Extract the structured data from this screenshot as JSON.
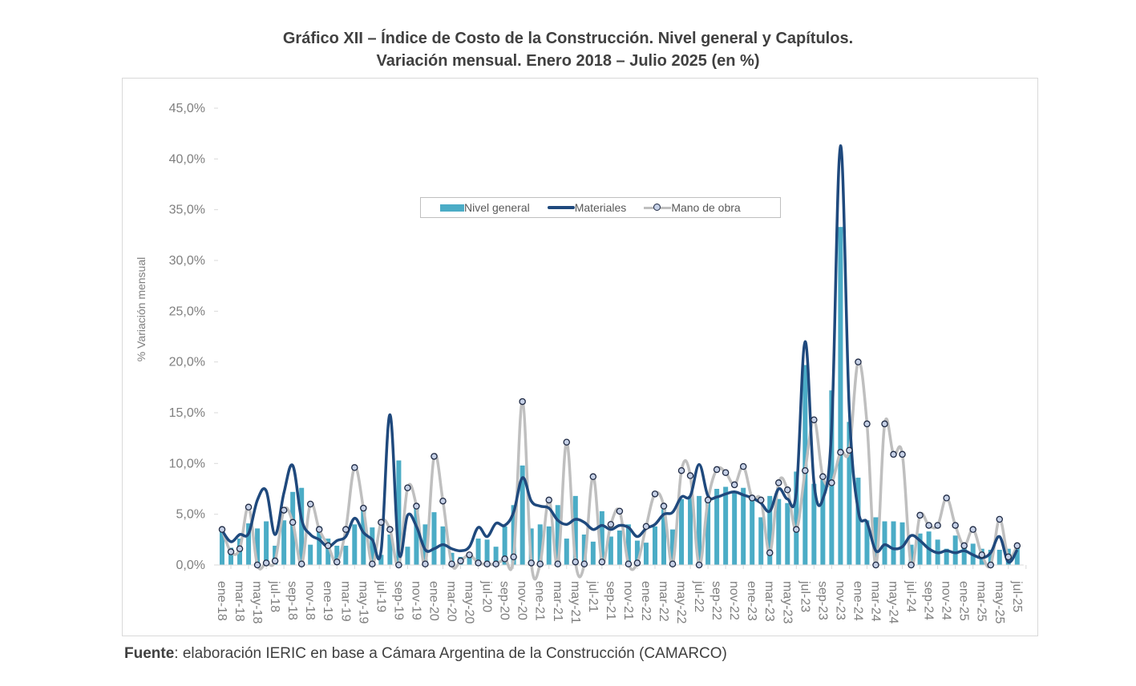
{
  "title_line1": "Gráfico XII – Índice de Costo de la Construcción. Nivel general y Capítulos.",
  "title_line2": "Variación mensual. Enero 2018 – Julio 2025 (en %)",
  "source_label": "Fuente",
  "source_text": ": elaboración IERIC en base a Cámara Argentina de la Construcción (CAMARCO)",
  "legend": {
    "nivel_general": "Nivel general",
    "materiales": "Materiales",
    "mano_de_obra": "Mano de obra"
  },
  "colors": {
    "nivel_general": "#4bacc6",
    "materiales": "#1f497d",
    "mano_de_obra": "#bfbfbf",
    "marker_fill": "#c5d0e6",
    "marker_edge": "#1f2a44"
  },
  "chart_data": {
    "type": "bar+line",
    "title": "Gráfico XII – Índice de Costo de la Construcción. Nivel general y Capítulos. Variación mensual. Enero 2018 – Julio 2025 (en %)",
    "xlabel": "",
    "ylabel": "% Variación mensual",
    "ylim": [
      0,
      45
    ],
    "yticks": [
      "0,0%",
      "5,0%",
      "10,0%",
      "15,0%",
      "20,0%",
      "25,0%",
      "30,0%",
      "35,0%",
      "40,0%",
      "45,0%"
    ],
    "ytick_values": [
      0,
      5,
      10,
      15,
      20,
      25,
      30,
      35,
      40,
      45
    ],
    "grid": false,
    "legend_position": "top-center",
    "categories": [
      "ene-18",
      "feb-18",
      "mar-18",
      "abr-18",
      "may-18",
      "jun-18",
      "jul-18",
      "ago-18",
      "sep-18",
      "oct-18",
      "nov-18",
      "dic-18",
      "ene-19",
      "feb-19",
      "mar-19",
      "abr-19",
      "may-19",
      "jun-19",
      "jul-19",
      "ago-19",
      "sep-19",
      "oct-19",
      "nov-19",
      "dic-19",
      "ene-20",
      "feb-20",
      "mar-20",
      "abr-20",
      "may-20",
      "jun-20",
      "jul-20",
      "ago-20",
      "sep-20",
      "oct-20",
      "nov-20",
      "dic-20",
      "ene-21",
      "feb-21",
      "mar-21",
      "abr-21",
      "may-21",
      "jun-21",
      "jul-21",
      "ago-21",
      "sep-21",
      "oct-21",
      "nov-21",
      "dic-21",
      "ene-22",
      "feb-22",
      "mar-22",
      "abr-22",
      "may-22",
      "jun-22",
      "jul-22",
      "ago-22",
      "sep-22",
      "oct-22",
      "nov-22",
      "dic-22",
      "ene-23",
      "feb-23",
      "mar-23",
      "abr-23",
      "may-23",
      "jun-23",
      "jul-23",
      "ago-23",
      "sep-23",
      "oct-23",
      "nov-23",
      "dic-23",
      "ene-24",
      "feb-24",
      "mar-24",
      "abr-24",
      "may-24",
      "jun-24",
      "jul-24",
      "ago-24",
      "sep-24",
      "oct-24",
      "nov-24",
      "dic-24",
      "ene-25",
      "feb-25",
      "mar-25",
      "abr-25",
      "may-25",
      "jun-25",
      "jul-25"
    ],
    "tick_labels_shown": [
      "ene-18",
      "mar-18",
      "may-18",
      "jul-18",
      "sep-18",
      "nov-18",
      "ene-19",
      "mar-19",
      "may-19",
      "jul-19",
      "sep-19",
      "nov-19",
      "ene-20",
      "mar-20",
      "may-20",
      "jul-20",
      "sep-20",
      "nov-20",
      "ene-21",
      "mar-21",
      "may-21",
      "jul-21",
      "sep-21",
      "nov-21",
      "ene-22",
      "mar-22",
      "may-22",
      "jul-22",
      "sep-22",
      "nov-22",
      "ene-23",
      "mar-23",
      "may-23",
      "jul-23",
      "sep-23",
      "nov-23",
      "ene-24",
      "mar-24",
      "may-24",
      "jul-24",
      "sep-24",
      "nov-24",
      "ene-25",
      "mar-25",
      "may-25",
      "jul-25"
    ],
    "series": [
      {
        "name": "Nivel general",
        "type": "bar",
        "values": [
          3.5,
          1.7,
          2.6,
          4.1,
          3.6,
          4.3,
          1.9,
          4.4,
          7.2,
          7.6,
          2.0,
          3.8,
          2.6,
          1.9,
          1.9,
          4.0,
          5.6,
          3.7,
          1.0,
          3.0,
          10.3,
          1.8,
          5.9,
          4.0,
          5.2,
          3.8,
          1.2,
          0.8,
          1.1,
          2.6,
          2.5,
          1.8,
          3.8,
          5.9,
          9.8,
          3.6,
          4.0,
          3.8,
          5.9,
          2.6,
          6.8,
          3.0,
          2.3,
          5.3,
          2.8,
          3.4,
          4.0,
          2.4,
          2.2,
          3.8,
          5.5,
          3.5,
          6.5,
          6.8,
          6.8,
          6.5,
          7.5,
          7.7,
          7.3,
          7.6,
          6.6,
          4.7,
          6.8,
          6.5,
          6.1,
          9.2,
          19.7,
          8.0,
          8.4,
          17.2,
          33.3,
          14.1,
          8.6,
          4.4,
          4.7,
          4.3,
          4.3,
          4.2,
          2.0,
          3.1,
          3.3,
          2.5,
          1.6,
          2.9,
          2.0,
          2.1,
          1.6,
          1.5,
          1.5,
          1.6,
          1.8
        ]
      },
      {
        "name": "Materiales",
        "type": "line",
        "values": [
          3.4,
          2.3,
          3.0,
          3.1,
          6.4,
          7.3,
          3.0,
          7.1,
          9.8,
          4.5,
          3.0,
          2.5,
          1.8,
          2.4,
          2.8,
          4.6,
          3.2,
          2.5,
          1.4,
          14.8,
          1.2,
          4.9,
          3.8,
          1.5,
          1.6,
          2.0,
          1.6,
          1.4,
          1.8,
          3.7,
          2.8,
          4.1,
          3.9,
          5.2,
          8.6,
          6.3,
          5.8,
          5.6,
          4.4,
          4.0,
          4.5,
          4.2,
          3.5,
          3.9,
          3.5,
          3.9,
          3.7,
          2.8,
          3.6,
          4.0,
          5.0,
          5.2,
          6.7,
          6.8,
          9.9,
          6.8,
          6.7,
          7.0,
          7.2,
          6.9,
          6.6,
          6.1,
          5.3,
          7.5,
          6.5,
          7.2,
          22.0,
          8.1,
          6.5,
          13.5,
          41.3,
          15.2,
          5.4,
          4.2,
          1.4,
          2.0,
          1.6,
          1.8,
          2.9,
          2.4,
          1.6,
          1.2,
          1.4,
          1.2,
          1.4,
          1.0,
          0.7,
          1.2,
          2.8,
          0.3,
          1.5
        ]
      },
      {
        "name": "Mano de obra",
        "type": "line",
        "markers": true,
        "values": [
          3.5,
          1.3,
          1.6,
          5.7,
          0.0,
          0.2,
          0.4,
          5.4,
          4.2,
          0.1,
          6.0,
          3.5,
          1.9,
          0.3,
          3.5,
          9.6,
          5.6,
          0.1,
          4.2,
          3.5,
          0.0,
          7.6,
          5.8,
          0.1,
          10.7,
          6.3,
          0.1,
          0.4,
          1.0,
          0.2,
          0.1,
          0.1,
          0.6,
          0.8,
          16.1,
          0.2,
          0.1,
          6.4,
          0.1,
          12.1,
          0.3,
          0.1,
          8.7,
          0.3,
          4.0,
          5.3,
          0.1,
          0.2,
          3.8,
          7.0,
          5.8,
          0.1,
          9.3,
          8.8,
          0.0,
          6.4,
          9.4,
          9.1,
          7.9,
          9.7,
          6.6,
          6.4,
          1.2,
          8.1,
          7.4,
          3.5,
          9.3,
          14.3,
          8.7,
          8.1,
          11.1,
          11.3,
          20.0,
          13.9,
          0.0,
          13.9,
          10.9,
          10.9,
          0.0,
          4.9,
          3.9,
          3.9,
          6.6,
          3.9,
          1.9,
          3.5,
          1.0,
          0.0,
          4.5,
          0.8,
          1.9
        ]
      }
    ]
  }
}
